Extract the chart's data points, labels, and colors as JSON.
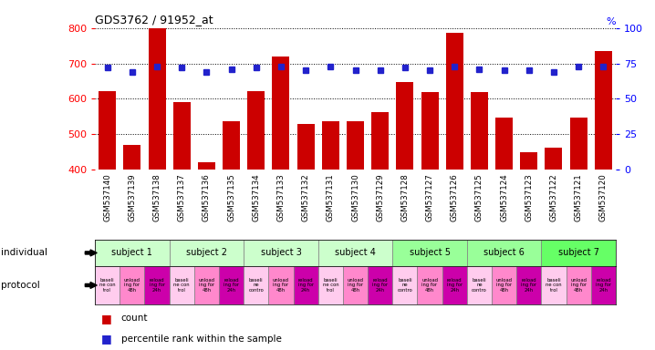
{
  "title": "GDS3762 / 91952_at",
  "samples": [
    "GSM537140",
    "GSM537139",
    "GSM537138",
    "GSM537137",
    "GSM537136",
    "GSM537135",
    "GSM537134",
    "GSM537133",
    "GSM537132",
    "GSM537131",
    "GSM537130",
    "GSM537129",
    "GSM537128",
    "GSM537127",
    "GSM537126",
    "GSM537125",
    "GSM537124",
    "GSM537123",
    "GSM537122",
    "GSM537121",
    "GSM537120"
  ],
  "counts": [
    622,
    470,
    800,
    590,
    420,
    537,
    622,
    720,
    530,
    537,
    537,
    562,
    648,
    620,
    787,
    620,
    547,
    450,
    462,
    547,
    735
  ],
  "percentile_ranks": [
    72,
    69,
    73,
    72,
    69,
    71,
    72,
    73,
    70,
    73,
    70,
    70,
    72,
    70,
    73,
    71,
    70,
    70,
    69,
    73,
    73
  ],
  "ylim_left": [
    400,
    800
  ],
  "ylim_right": [
    0,
    100
  ],
  "yticks_left": [
    400,
    500,
    600,
    700,
    800
  ],
  "yticks_right": [
    0,
    25,
    50,
    75,
    100
  ],
  "bar_color": "#cc0000",
  "dot_color": "#2222cc",
  "subjects": [
    {
      "label": "subject 1",
      "start": 0,
      "end": 3
    },
    {
      "label": "subject 2",
      "start": 3,
      "end": 6
    },
    {
      "label": "subject 3",
      "start": 6,
      "end": 9
    },
    {
      "label": "subject 4",
      "start": 9,
      "end": 12
    },
    {
      "label": "subject 5",
      "start": 12,
      "end": 15
    },
    {
      "label": "subject 6",
      "start": 15,
      "end": 18
    },
    {
      "label": "subject 7",
      "start": 18,
      "end": 21
    }
  ],
  "subject_colors": [
    "#ccffcc",
    "#ccffcc",
    "#ccffcc",
    "#ccffcc",
    "#99ff99",
    "#99ee99",
    "#66ff66"
  ],
  "protocols": [
    "baseli\nne con\ntrol",
    "unload\ning for\n48h",
    "reload\ning for\n24h",
    "baseli\nne con\ntrol",
    "unload\ning for\n48h",
    "reload\ning for\n24h",
    "baseli\nne\ncontro",
    "unload\ning for\n48h",
    "reload\ning for\n24h",
    "baseli\nne con\ntrol",
    "unload\ning for\n48h",
    "reload\ning for\n24h",
    "baseli\nne\ncontro",
    "unload\ning for\n48h",
    "reload\ning for\n24h",
    "baseli\nne\ncontro",
    "unload\ning for\n48h",
    "reload\ning for\n24h",
    "baseli\nne con\ntrol",
    "unload\ning for\n48h",
    "reload\ning for\n24h"
  ],
  "protocol_colors": [
    "#ffaadd",
    "#ff66bb",
    "#cc00aa",
    "#ffaadd",
    "#ff66bb",
    "#cc00aa",
    "#ffaadd",
    "#ff66bb",
    "#cc00aa",
    "#ffaadd",
    "#ff66bb",
    "#cc00aa",
    "#ffaadd",
    "#ff66bb",
    "#cc00aa",
    "#ffaadd",
    "#ff66bb",
    "#cc00aa",
    "#ffaadd",
    "#ff66bb",
    "#cc00aa"
  ],
  "individual_label": "individual",
  "protocol_label": "protocol",
  "legend_count": "count",
  "legend_percentile": "percentile rank within the sample",
  "bg_color": "#f0f0f0"
}
